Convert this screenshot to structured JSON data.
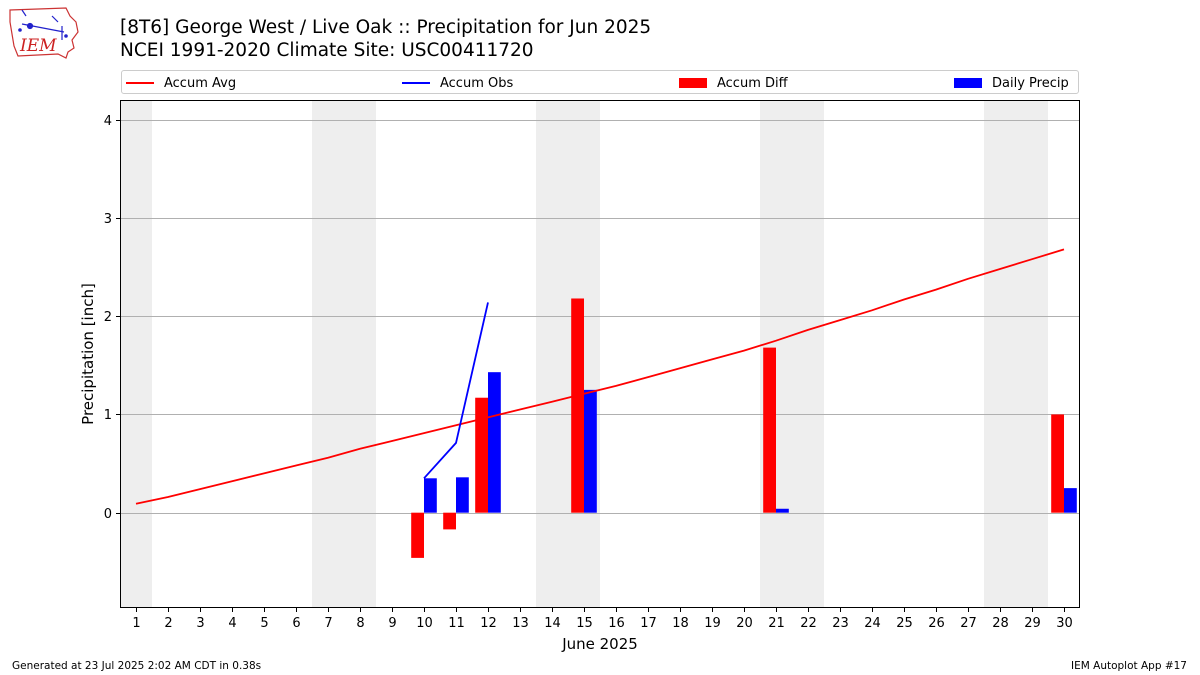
{
  "header": {
    "logo_text": "IEM",
    "title_line1": "[8T6] George West / Live Oak :: Precipitation for Jun 2025",
    "title_line2": "NCEI 1991-2020 Climate Site: USC00411720"
  },
  "footer": {
    "generated": "Generated at 23 Jul 2025 2:02 AM CDT in 0.38s",
    "app": "IEM Autoplot App #17"
  },
  "legend": {
    "accum_avg": "Accum Avg",
    "accum_obs": "Accum Obs",
    "accum_diff": "Accum Diff",
    "daily_precip": "Daily Precip"
  },
  "colors": {
    "accum_avg": "#ff0000",
    "accum_obs": "#0000ff",
    "accum_diff": "#ff0000",
    "daily_precip": "#0000ff",
    "weekend_shade": "#eeeeee",
    "grid": "#b0b0b0"
  },
  "chart_data": {
    "type": "bar",
    "xlabel": "June 2025",
    "ylabel": "Precipitation [inch]",
    "xlim": [
      0.5,
      30.5
    ],
    "ylim": [
      -0.97,
      4.2
    ],
    "y_ticks": [
      0,
      1,
      2,
      3,
      4
    ],
    "grid": true,
    "legend_position": "top",
    "days": [
      1,
      2,
      3,
      4,
      5,
      6,
      7,
      8,
      9,
      10,
      11,
      12,
      13,
      14,
      15,
      16,
      17,
      18,
      19,
      20,
      21,
      22,
      23,
      24,
      25,
      26,
      27,
      28,
      29,
      30
    ],
    "shaded_weekend_spans": [
      [
        0.5,
        1.5
      ],
      [
        6.5,
        8.5
      ],
      [
        13.5,
        15.5
      ],
      [
        20.5,
        22.5
      ],
      [
        27.5,
        29.5
      ]
    ],
    "series": [
      {
        "name": "Accum Avg",
        "type": "line",
        "values": [
          0.09,
          0.16,
          0.24,
          0.32,
          0.4,
          0.48,
          0.56,
          0.65,
          0.73,
          0.81,
          0.89,
          0.97,
          1.05,
          1.13,
          1.21,
          1.29,
          1.38,
          1.47,
          1.56,
          1.65,
          1.75,
          1.86,
          1.96,
          2.06,
          2.17,
          2.27,
          2.38,
          2.48,
          2.58,
          2.68
        ]
      },
      {
        "name": "Accum Obs",
        "type": "line",
        "days": [
          10,
          11,
          12
        ],
        "values": [
          0.35,
          0.71,
          2.14
        ]
      },
      {
        "name": "Accum Diff",
        "type": "bar",
        "days": [
          10,
          11,
          12,
          15,
          21,
          30
        ],
        "values": [
          -0.46,
          -0.17,
          1.17,
          2.18,
          1.68,
          1.0
        ]
      },
      {
        "name": "Daily Precip",
        "type": "bar",
        "days": [
          10,
          11,
          12,
          15,
          21,
          30
        ],
        "values": [
          0.35,
          0.36,
          1.43,
          1.25,
          0.04,
          0.25
        ]
      }
    ]
  }
}
